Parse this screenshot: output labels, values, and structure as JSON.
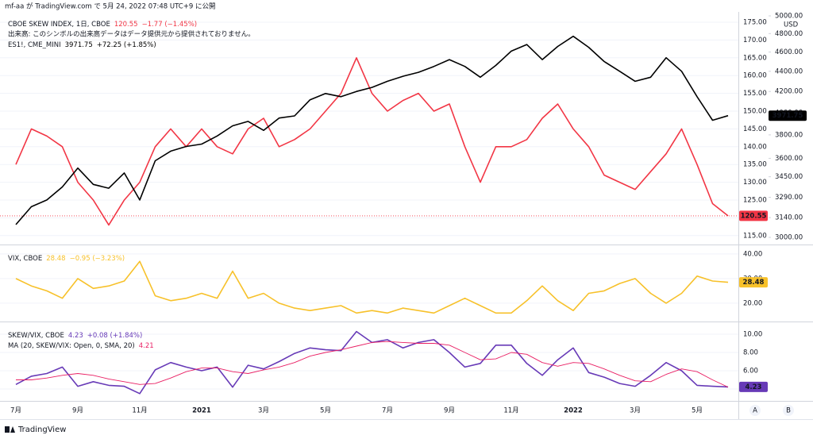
{
  "header": {
    "publish_note": "mf-aa が TradingView.com で 5月 24, 2022 07:48 UTC+9 に公開"
  },
  "footer": {
    "brand": "TradingView"
  },
  "buttons": [
    "A",
    "B"
  ],
  "chart_data": {
    "type": "line",
    "categories": [
      "7月",
      null,
      null,
      null,
      "9月",
      null,
      null,
      null,
      "11月",
      null,
      null,
      null,
      "2021",
      null,
      null,
      null,
      "3月",
      null,
      null,
      null,
      "5月",
      null,
      null,
      null,
      "7月",
      null,
      null,
      null,
      "9月",
      null,
      null,
      null,
      "11月",
      null,
      null,
      null,
      "2022",
      null,
      null,
      null,
      "3月",
      null,
      null,
      null,
      "5月",
      null,
      null
    ],
    "panes": [
      {
        "grid": true,
        "note": "出来高: このシンボルの出来高データはデータ提供元から提供されておりません。",
        "ylim": [
          112.5,
          177.9
        ],
        "yticks": [
          {
            "value": 115,
            "label": "115.00"
          },
          {
            "value": 120,
            "label": "120.00"
          },
          {
            "value": 125,
            "label": "125.00"
          },
          {
            "value": 130,
            "label": "130.00"
          },
          {
            "value": 135,
            "label": "135.00"
          },
          {
            "value": 140,
            "label": "140.00"
          },
          {
            "value": 145,
            "label": "145.00"
          },
          {
            "value": 150,
            "label": "150.00"
          },
          {
            "value": 155,
            "label": "155.00"
          },
          {
            "value": 160,
            "label": "160.00"
          },
          {
            "value": 165,
            "label": "165.00"
          },
          {
            "value": 170,
            "label": "170.00"
          },
          {
            "value": 175,
            "label": "175.00"
          }
        ],
        "y2lim": [
          2951,
          5046
        ],
        "y2scale": "log",
        "y2_unit": "USD",
        "y2ticks": [
          {
            "value": 3000,
            "label": "3000.00"
          },
          {
            "value": 3140,
            "label": "3140.00"
          },
          {
            "value": 3290,
            "label": "3290.00"
          },
          {
            "value": 3450,
            "label": "3450.00"
          },
          {
            "value": 3600,
            "label": "3600.00"
          },
          {
            "value": 3800,
            "label": "3800.00"
          },
          {
            "value": 4000,
            "label": "4000.00"
          },
          {
            "value": 4200,
            "label": "4200.00"
          },
          {
            "value": 4400,
            "label": "4400.00"
          },
          {
            "value": 4600,
            "label": "4600.00"
          },
          {
            "value": 4800,
            "label": "4800.00"
          },
          {
            "value": 5000,
            "label": "5000.00"
          }
        ],
        "series": [
          {
            "name": "CBOE SKEW INDEX, 1日, CBOE",
            "change": "−1.77 (−1.45%)",
            "color": "#f23645",
            "axis": "y",
            "last_value_box": true,
            "price_line": true,
            "values": [
              135,
              145,
              143,
              140,
              130,
              125,
              118,
              125,
              130,
              140,
              145,
              140,
              145,
              140,
              138,
              145,
              148,
              140,
              142,
              145,
              150,
              155,
              165,
              155,
              150,
              153,
              155,
              150,
              152,
              140,
              130,
              140,
              140,
              142,
              148,
              152,
              145,
              140,
              132,
              130,
              128,
              133,
              138,
              145,
              135,
              124,
              120.55
            ]
          },
          {
            "name": "ES1!, CME_MINI",
            "change": "+72.25 (+1.85%)",
            "color": "#000000",
            "axis": "y2",
            "last_value_box": true,
            "price_line": false,
            "values": [
              3090,
              3220,
              3270,
              3370,
              3520,
              3390,
              3360,
              3480,
              3270,
              3580,
              3660,
              3700,
              3720,
              3790,
              3880,
              3920,
              3840,
              3950,
              3970,
              4120,
              4180,
              4150,
              4200,
              4240,
              4300,
              4350,
              4390,
              4450,
              4520,
              4450,
              4340,
              4460,
              4610,
              4680,
              4520,
              4660,
              4770,
              4650,
              4500,
              4400,
              4300,
              4340,
              4540,
              4400,
              4150,
              3930,
              3971.75
            ]
          }
        ]
      },
      {
        "grid": true,
        "ylim": [
          13.2,
          43.2
        ],
        "yticks": [
          {
            "value": 20,
            "label": "20.00"
          },
          {
            "value": 30,
            "label": "30.00"
          },
          {
            "value": 40,
            "label": "40.00"
          }
        ],
        "series": [
          {
            "name": "VIX, CBOE",
            "change": "−0.95 (−3.23%)",
            "color": "#f7c12a",
            "axis": "y",
            "last_value_box": true,
            "price_line": false,
            "values": [
              30,
              27,
              25,
              22,
              30,
              26,
              27,
              29,
              37,
              23,
              21,
              22,
              24,
              22,
              33,
              22,
              24,
              20,
              18,
              17,
              18,
              19,
              16,
              17,
              16,
              18,
              17,
              16,
              19,
              22,
              19,
              16,
              16,
              21,
              27,
              21,
              17,
              24,
              25,
              28,
              30,
              24,
              20,
              24,
              31,
              29,
              28.48
            ]
          }
        ]
      },
      {
        "grid": true,
        "ylim": [
          2.87,
          11.22
        ],
        "yticks": [
          {
            "value": 4,
            "label": "4.00"
          },
          {
            "value": 6,
            "label": "6.00"
          },
          {
            "value": 8,
            "label": "8.00"
          },
          {
            "value": 10,
            "label": "10.00"
          }
        ],
        "series": [
          {
            "name": "SKEW/VIX, CBOE",
            "change": "+0.08 (+1.84%)",
            "color": "#673ab7",
            "axis": "y",
            "last_value_box": true,
            "price_line": false,
            "values": [
              4.5,
              5.4,
              5.7,
              6.4,
              4.3,
              4.8,
              4.4,
              4.3,
              3.5,
              6.1,
              6.9,
              6.4,
              6.0,
              6.4,
              4.2,
              6.6,
              6.2,
              7.0,
              7.9,
              8.5,
              8.3,
              8.2,
              10.3,
              9.1,
              9.4,
              8.5,
              9.1,
              9.4,
              8.0,
              6.4,
              6.8,
              8.8,
              8.8,
              6.8,
              5.5,
              7.2,
              8.5,
              5.8,
              5.3,
              4.6,
              4.3,
              5.5,
              6.9,
              6.0,
              4.4,
              4.3,
              4.23
            ]
          },
          {
            "name": "MA (20, SKEW/VIX: Open, 0, SMA, 20)",
            "color": "#e91e63",
            "axis": "y",
            "last_value_box": false,
            "price_line": false,
            "values": [
              5.0,
              5.0,
              5.2,
              5.5,
              5.7,
              5.5,
              5.1,
              4.8,
              4.5,
              4.6,
              5.2,
              5.9,
              6.3,
              6.3,
              5.9,
              5.7,
              6.1,
              6.4,
              6.9,
              7.6,
              8.0,
              8.3,
              8.7,
              9.1,
              9.2,
              9.1,
              9.0,
              9.0,
              8.8,
              8.0,
              7.2,
              7.3,
              8.0,
              7.8,
              6.9,
              6.5,
              6.9,
              6.8,
              6.2,
              5.5,
              4.9,
              4.8,
              5.6,
              6.2,
              5.9,
              5.0,
              4.21
            ]
          }
        ]
      }
    ]
  }
}
